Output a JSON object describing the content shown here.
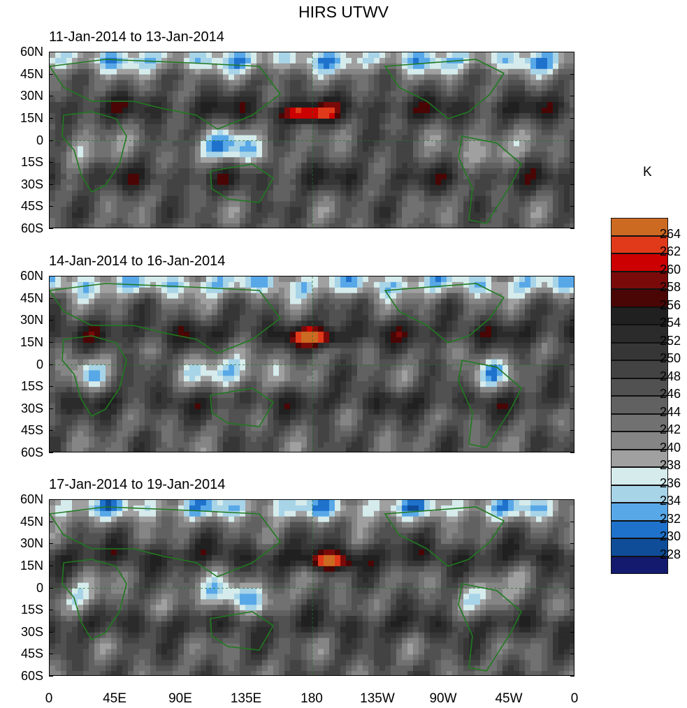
{
  "title": "HIRS UTWV",
  "panels": [
    {
      "label": "11-Jan-2014 to 13-Jan-2014"
    },
    {
      "label": "14-Jan-2014 to 16-Jan-2014"
    },
    {
      "label": "17-Jan-2014 to 19-Jan-2014"
    }
  ],
  "lat_labels": [
    "60N",
    "45N",
    "30N",
    "15N",
    "0",
    "15S",
    "30S",
    "45S",
    "60S"
  ],
  "lon_labels": [
    "0",
    "45E",
    "90E",
    "135E",
    "180",
    "135W",
    "90W",
    "45W",
    "0"
  ],
  "colorbar": {
    "unit": "K",
    "tick_labels": [
      "264",
      "262",
      "260",
      "258",
      "256",
      "254",
      "252",
      "250",
      "248",
      "246",
      "244",
      "242",
      "240",
      "238",
      "236",
      "234",
      "232",
      "230",
      "228"
    ],
    "colors": [
      "#cc6a22",
      "#e03a1a",
      "#cc0000",
      "#7a0a0a",
      "#4a0505",
      "#202020",
      "#2b2b2b",
      "#363636",
      "#434343",
      "#515151",
      "#616161",
      "#717171",
      "#858585",
      "#a0a0a0",
      "#d6ecec",
      "#a8d4e8",
      "#58a8e8",
      "#1f72cc",
      "#0f4d99",
      "#141a6e"
    ]
  },
  "colors": {
    "land_outline": "#1f7a1f",
    "background": "#ffffff"
  }
}
